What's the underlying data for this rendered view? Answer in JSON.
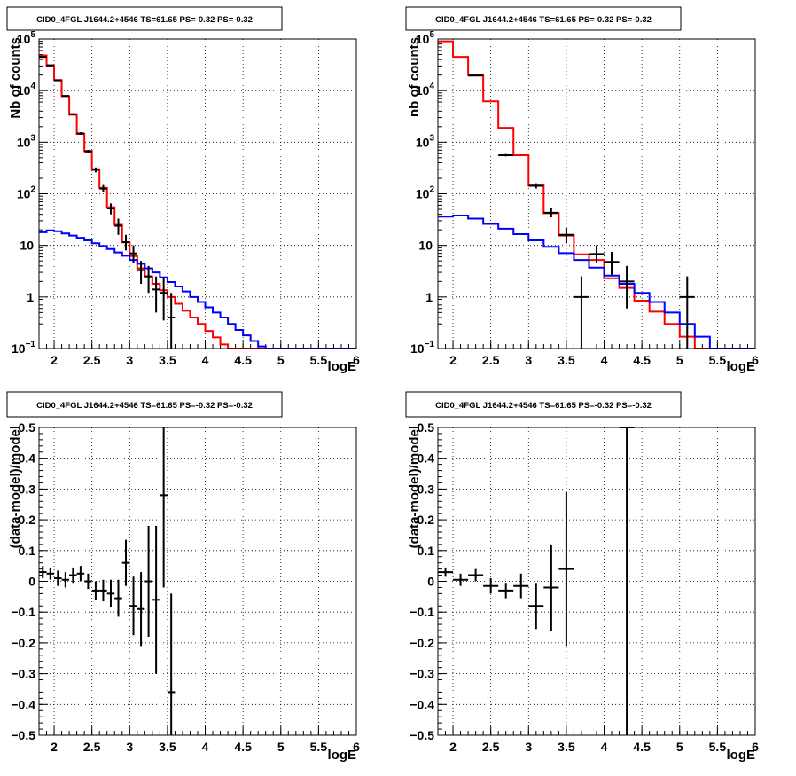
{
  "chart_data": [
    {
      "type": "histogram",
      "title": "CID0_4FGL J1644.2+4546 TS=61.65 PS=-0.32 PS=-0.32",
      "xlabel": "logE",
      "ylabel": "Nb of counts",
      "xlim": [
        1.8,
        6.0
      ],
      "ylim": [
        0.1,
        100000
      ],
      "yscale": "log",
      "grid": true,
      "xticks": [
        "2",
        "2.5",
        "3",
        "3.5",
        "4",
        "4.5",
        "5",
        "5.5",
        "6"
      ],
      "yticks": [
        "10-1",
        "1",
        "10",
        "10 2",
        "10 3",
        "10 4",
        "10 5"
      ],
      "edges": [
        1.8,
        1.9,
        2.0,
        2.1,
        2.2,
        2.3,
        2.4,
        2.5,
        2.6,
        2.7,
        2.8,
        2.9,
        3.0,
        3.1,
        3.2,
        3.3,
        3.4,
        3.5,
        3.6,
        3.7,
        3.8,
        3.9,
        4.0,
        4.1,
        4.2,
        4.3,
        4.4,
        4.5,
        4.6,
        4.7,
        4.8,
        4.9,
        5.0,
        5.1,
        5.2,
        5.3,
        5.4,
        5.5,
        5.6,
        5.7,
        5.8,
        5.9,
        6.0
      ],
      "series": [
        {
          "color": "#ff0000",
          "kind": "total_model",
          "values": [
            48000,
            30000,
            16000,
            7800,
            3400,
            1450,
            680,
            300,
            130,
            55,
            25,
            11.5,
            6.2,
            3.6,
            2.5,
            1.8,
            1.35,
            1.0,
            0.74,
            0.54,
            0.4,
            0.3,
            0.22,
            0.165,
            0.12,
            0.1,
            0.1,
            0.1,
            0.1,
            0.1,
            0.1,
            0.1,
            0.1,
            0.1,
            0.1,
            0.1,
            0.1,
            0.1,
            0.1,
            0.1,
            0.1,
            0.1
          ]
        },
        {
          "color": "#0000ff",
          "kind": "background_model",
          "values": [
            18,
            19.5,
            18.8,
            17,
            15.5,
            14,
            12.5,
            11,
            9.7,
            8.5,
            7.3,
            6.3,
            5.2,
            4.4,
            3.6,
            3.0,
            2.4,
            1.95,
            1.6,
            1.28,
            1.0,
            0.8,
            0.63,
            0.5,
            0.4,
            0.3,
            0.23,
            0.18,
            0.14,
            0.11,
            0.1,
            0.1,
            0.1,
            0.1,
            0.1,
            0.1,
            0.1,
            0.1,
            0.1,
            0.1,
            0.1,
            0.1
          ]
        },
        {
          "color": "#000000",
          "kind": "data",
          "points": [
            {
              "x": 1.85,
              "y": 45000,
              "elo": 44000,
              "ehi": 46000
            },
            {
              "x": 1.95,
              "y": 31000,
              "elo": 30200,
              "ehi": 31800
            },
            {
              "x": 2.05,
              "y": 15800,
              "elo": 15400,
              "ehi": 16200
            },
            {
              "x": 2.15,
              "y": 7900,
              "elo": 7700,
              "ehi": 8100
            },
            {
              "x": 2.25,
              "y": 3500,
              "elo": 3380,
              "ehi": 3620
            },
            {
              "x": 2.35,
              "y": 1480,
              "elo": 1400,
              "ehi": 1560
            },
            {
              "x": 2.45,
              "y": 660,
              "elo": 610,
              "ehi": 710
            },
            {
              "x": 2.55,
              "y": 292,
              "elo": 260,
              "ehi": 324
            },
            {
              "x": 2.65,
              "y": 126,
              "elo": 106,
              "ehi": 148
            },
            {
              "x": 2.75,
              "y": 52,
              "elo": 40,
              "ehi": 65
            },
            {
              "x": 2.85,
              "y": 24,
              "elo": 16,
              "ehi": 33
            },
            {
              "x": 2.95,
              "y": 11.5,
              "elo": 8,
              "ehi": 16
            },
            {
              "x": 3.05,
              "y": 7,
              "elo": 4.5,
              "ehi": 10
            },
            {
              "x": 3.15,
              "y": 3.3,
              "elo": 1.8,
              "ehi": 5
            },
            {
              "x": 3.25,
              "y": 2.5,
              "elo": 1.2,
              "ehi": 4
            },
            {
              "x": 3.35,
              "y": 1.4,
              "elo": 0.5,
              "ehi": 2.5
            },
            {
              "x": 3.45,
              "y": 1.2,
              "elo": 0.35,
              "ehi": 2.4
            },
            {
              "x": 3.55,
              "y": 0.4,
              "elo": 0.1,
              "ehi": 1.2
            }
          ]
        }
      ]
    },
    {
      "type": "histogram",
      "title": "CID0_4FGL J1644.2+4546 TS=61.65 PS=-0.32 PS=-0.32",
      "xlabel": "logE",
      "ylabel": "nb of counts",
      "xlim": [
        1.8,
        6.0
      ],
      "ylim": [
        0.1,
        100000
      ],
      "yscale": "log",
      "grid": true,
      "xticks": [
        "2",
        "2.5",
        "3",
        "3.5",
        "4",
        "4.5",
        "5",
        "5.5",
        "6"
      ],
      "yticks": [
        "10-1",
        "1",
        "10",
        "10 2",
        "10 3",
        "10 4",
        "10 5"
      ],
      "edges": [
        1.8,
        2.0,
        2.2,
        2.4,
        2.6,
        2.8,
        3.0,
        3.2,
        3.4,
        3.6,
        3.8,
        4.0,
        4.2,
        4.4,
        4.6,
        4.8,
        5.0,
        5.2,
        5.4,
        5.6,
        5.8,
        6.0
      ],
      "series": [
        {
          "color": "#ff0000",
          "kind": "total_model",
          "values": [
            90000,
            45000,
            20000,
            6200,
            1900,
            560,
            145,
            42,
            15.5,
            6.7,
            5.2,
            2.3,
            1.5,
            0.85,
            0.52,
            0.3,
            0.17,
            0.1,
            0.1,
            0.1,
            0.1
          ]
        },
        {
          "color": "#0000ff",
          "kind": "background_model",
          "values": [
            36,
            38,
            33,
            26,
            21,
            16.5,
            12.5,
            9.4,
            7.1,
            5.2,
            3.7,
            2.6,
            1.8,
            1.2,
            0.8,
            0.5,
            0.3,
            0.17,
            0.1,
            0.1,
            0.1
          ]
        },
        {
          "color": "#000000",
          "kind": "data",
          "points": [
            {
              "x": 2.3,
              "y": 19500,
              "elo": 19000,
              "ehi": 20000
            },
            {
              "x": 2.7,
              "y": 560,
              "elo": 530,
              "ehi": 590
            },
            {
              "x": 3.1,
              "y": 143,
              "elo": 127,
              "ehi": 160
            },
            {
              "x": 3.3,
              "y": 43,
              "elo": 35,
              "ehi": 52
            },
            {
              "x": 3.5,
              "y": 16,
              "elo": 11,
              "ehi": 22
            },
            {
              "x": 3.7,
              "y": 1,
              "elo": 0.1,
              "ehi": 2.5
            },
            {
              "x": 3.9,
              "y": 6.8,
              "elo": 4.5,
              "ehi": 10
            },
            {
              "x": 4.1,
              "y": 4.8,
              "elo": 2.7,
              "ehi": 7.5
            },
            {
              "x": 4.3,
              "y": 2,
              "elo": 0.6,
              "ehi": 4
            },
            {
              "x": 5.1,
              "y": 1,
              "elo": 0.1,
              "ehi": 2.5
            }
          ]
        }
      ]
    },
    {
      "type": "scatter",
      "title": "CID0_4FGL J1644.2+4546 TS=61.65 PS=-0.32 PS=-0.32",
      "xlabel": "logE",
      "ylabel": "(data-model)/model",
      "xlim": [
        1.8,
        6.0
      ],
      "ylim": [
        -0.5,
        0.5
      ],
      "grid": true,
      "xticks": [
        "2",
        "2.5",
        "3",
        "3.5",
        "4",
        "4.5",
        "5",
        "5.5",
        "6"
      ],
      "yticks": [
        "−0.5",
        "−0.4",
        "−0.3",
        "−0.2",
        "−0.1",
        "0",
        "0.1",
        "0.2",
        "0.3",
        "0.4",
        "0.5"
      ],
      "bin_halfwidth": 0.05,
      "points": [
        {
          "x": 1.85,
          "y": 0.03,
          "err": 0.02
        },
        {
          "x": 1.95,
          "y": 0.025,
          "err": 0.02
        },
        {
          "x": 2.05,
          "y": 0.01,
          "err": 0.025
        },
        {
          "x": 2.15,
          "y": 0.005,
          "err": 0.025
        },
        {
          "x": 2.25,
          "y": 0.02,
          "err": 0.025
        },
        {
          "x": 2.35,
          "y": 0.025,
          "err": 0.025
        },
        {
          "x": 2.45,
          "y": 0.0,
          "err": 0.025
        },
        {
          "x": 2.55,
          "y": -0.03,
          "err": 0.03
        },
        {
          "x": 2.65,
          "y": -0.03,
          "err": 0.035
        },
        {
          "x": 2.75,
          "y": -0.04,
          "err": 0.045
        },
        {
          "x": 2.85,
          "y": -0.055,
          "err": 0.06
        },
        {
          "x": 2.95,
          "y": 0.06,
          "err": 0.075
        },
        {
          "x": 3.05,
          "y": -0.08,
          "err": 0.095
        },
        {
          "x": 3.15,
          "y": -0.09,
          "err": 0.12
        },
        {
          "x": 3.25,
          "y": 0.0,
          "err": 0.18
        },
        {
          "x": 3.35,
          "y": -0.06,
          "err": 0.24
        },
        {
          "x": 3.45,
          "y": 0.28,
          "err": 0.3
        },
        {
          "x": 3.55,
          "y": -0.36,
          "err": 0.32
        }
      ]
    },
    {
      "type": "scatter",
      "title": "CID0_4FGL J1644.2+4546 TS=61.65 PS=-0.32 PS=-0.32",
      "xlabel": "logE",
      "ylabel": "(data-model)/model",
      "xlim": [
        1.8,
        6.0
      ],
      "ylim": [
        -0.5,
        0.5
      ],
      "grid": true,
      "xticks": [
        "2",
        "2.5",
        "3",
        "3.5",
        "4",
        "4.5",
        "5",
        "5.5",
        "6"
      ],
      "yticks": [
        "−0.5",
        "−0.4",
        "−0.3",
        "−0.2",
        "−0.1",
        "0",
        "0.1",
        "0.2",
        "0.3",
        "0.4",
        "0.5"
      ],
      "bin_halfwidth": 0.1,
      "points": [
        {
          "x": 1.9,
          "y": 0.03,
          "err": 0.015
        },
        {
          "x": 2.1,
          "y": 0.005,
          "err": 0.02
        },
        {
          "x": 2.3,
          "y": 0.02,
          "err": 0.02
        },
        {
          "x": 2.5,
          "y": -0.015,
          "err": 0.025
        },
        {
          "x": 2.7,
          "y": -0.03,
          "err": 0.025
        },
        {
          "x": 2.9,
          "y": -0.015,
          "err": 0.04
        },
        {
          "x": 3.1,
          "y": -0.08,
          "err": 0.075
        },
        {
          "x": 3.3,
          "y": -0.02,
          "err": 0.14
        },
        {
          "x": 3.5,
          "y": 0.04,
          "err": 0.25
        },
        {
          "x": 4.3,
          "y": 0.5,
          "err": 1.2
        }
      ]
    }
  ]
}
